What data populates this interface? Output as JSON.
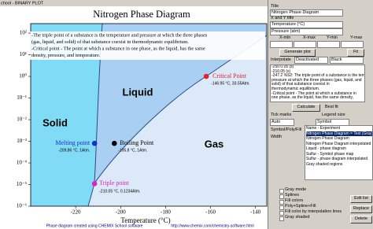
{
  "window": {
    "title": "chool - BINARY PLOT"
  },
  "chart_data": {
    "type": "scatter",
    "title": "Nitrogen Phase Diagram",
    "x_label": "Temperature (°C)",
    "xlim": [
      -240,
      -135
    ],
    "xticks": [
      -220,
      -200,
      -180,
      -160,
      -140
    ],
    "ylim": [
      1e-06,
      275
    ],
    "y_log": true,
    "yticks": [
      {
        "value": 100,
        "label": "10²"
      },
      {
        "value": 10,
        "label": "10¹"
      },
      {
        "value": 1,
        "label": "10⁰"
      },
      {
        "value": 0.1,
        "label": "10⁻¹"
      },
      {
        "value": 0.01,
        "label": "10⁻²"
      },
      {
        "value": 0.001,
        "label": "10⁻³"
      },
      {
        "value": 0.0001,
        "label": "10⁻⁴"
      },
      {
        "value": 1e-05,
        "label": "10⁻⁵"
      },
      {
        "value": 1e-06,
        "label": "10⁻⁶"
      }
    ],
    "regions": [
      "Solid",
      "Liquid",
      "Gas"
    ],
    "notes": [
      "-The triple point of a substance is the temperature and pressure at which the three phases",
      "(gas, liquid, and solid) of that substance coexist in thermodynamic equilibrium.",
      "-Critical point - The point at which a substance in one phase, as the liquid, has the same",
      "density, pressure, and temperature."
    ],
    "series": [
      {
        "name": "Critical Point",
        "color": "#e8202a",
        "x": [
          -161.9
        ],
        "values": [
          1
        ],
        "caption": "-146.95 °C, 33.55Atm."
      },
      {
        "name": "Melting point",
        "color": "#1830c8",
        "x": [
          -211.6
        ],
        "values": [
          0.0008
        ],
        "caption": "-209.86 °C, 1Atm."
      },
      {
        "name": "Boiling Point",
        "color": "#000000",
        "x": [
          -202.8
        ],
        "values": [
          0.0008
        ],
        "caption": "-195.8 °C, 1Atm."
      },
      {
        "name": "Triple point",
        "color": "#e020c8",
        "x": [
          -211.6
        ],
        "values": [
          1.1e-05
        ],
        "caption": "-210.05 °C, 0.1234Atm."
      }
    ],
    "footer": {
      "credit": "Phase diagram created using CHEMIX School software",
      "url": "http://www.chemix.com/chemistry-software.html"
    }
  },
  "panel": {
    "title_label": "Title",
    "title_value": "Nitrogen Phase Diagram",
    "axis_titles_label": "X and Y title",
    "x_title_value": "Temperature (°C)",
    "y_title_value": "Pressure (atm)",
    "range_labels": [
      "X-min",
      "X-max",
      "Y-min",
      "Y-max"
    ],
    "generate_button": "Generate plot",
    "fit_button": "Fit",
    "interpolate_label": "Interpolate",
    "interpolate_value": "Deactivated",
    "color_value": "Black",
    "data_lines": [
      "-250  0.05  (s)",
      "-210.05  (s)",
      "-247.2 %S2: The triple point of a substance is the temperatu",
      "pressure at which the three phases (gas, liquid, and",
      "solid) of that substance coexist in",
      "thermodynamic equilibrium.",
      "-Critical point - The point at which a substance in",
      "one phase, as the liquid, has the same density,"
    ],
    "calculate_button": "Calculate",
    "best_fit_label": "Best fit",
    "tick_marks_label": "Tick marks",
    "legend_size_label": "Legend size",
    "auto_value": "Auto",
    "symbol_value": "Symbol",
    "symbol_label": "Symbol/Poly/Fill",
    "width_label": "Width",
    "list_header": "Name - Experiment",
    "list_items": [
      "Nitrogen Phase Diagram = Text (Gray)",
      "Nitrogen Phase Diagram",
      "Nitrogen Phase Diagram interpolated",
      "Liquid - phase diagram",
      "Sulfur - Symbol phase map",
      "Sulfur - phase diagram interpolated",
      "Gray shaded regions"
    ],
    "checkboxes": [
      "Gray mode",
      "Splines",
      "Fill colors",
      "Poly+Spline+Fill",
      "Fill color by interpolation lines",
      "Gray shaded"
    ],
    "buttons": [
      "Edit list",
      "Replace",
      "Delete"
    ]
  }
}
